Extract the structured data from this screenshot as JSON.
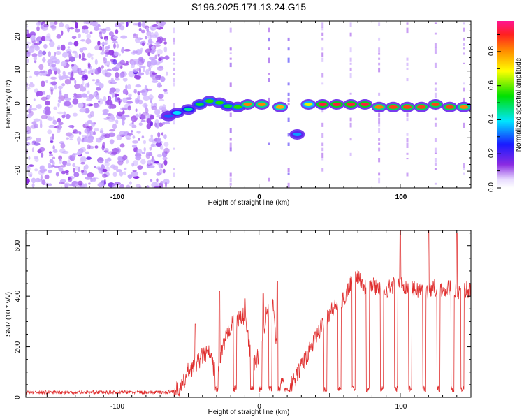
{
  "title": "S196.2025.171.13.24.G15",
  "colorbar": {
    "label": "Normalized spectral amplitude",
    "ticks": [
      "0.0",
      "0.2",
      "0.4",
      "0.6",
      "0.8"
    ],
    "range": [
      0.0,
      0.98
    ]
  },
  "chart_data": [
    {
      "type": "heatmap",
      "title": "S196.2025.171.13.24.G15",
      "xlabel": "Height of straight line (km)",
      "ylabel": "Frequency (Hz)",
      "xlim": [
        -165,
        150
      ],
      "ylim": [
        -25,
        25
      ],
      "xticks": [
        "-100",
        "0",
        "100"
      ],
      "yticks": [
        "-20",
        "-10",
        "0",
        "10",
        "20"
      ],
      "colormap": "rainbow (white -> violet -> blue -> cyan -> green -> yellow -> orange -> red -> magenta)",
      "noise_region_x": [
        -165,
        -65
      ],
      "ridge": [
        {
          "x": -64,
          "freq": -3.5,
          "amp": 0.35
        },
        {
          "x": -58,
          "freq": -2.5,
          "amp": 0.45
        },
        {
          "x": -50,
          "freq": -1.5,
          "amp": 0.5
        },
        {
          "x": -42,
          "freq": 0.0,
          "amp": 0.55
        },
        {
          "x": -35,
          "freq": 1.0,
          "amp": 0.6
        },
        {
          "x": -28,
          "freq": 0.5,
          "amp": 0.6
        },
        {
          "x": -22,
          "freq": -0.5,
          "amp": 0.55
        },
        {
          "x": -15,
          "freq": -0.8,
          "amp": 0.6
        },
        {
          "x": -8,
          "freq": 0.0,
          "amp": 0.85
        },
        {
          "x": 2,
          "freq": 0.0,
          "amp": 0.85
        },
        {
          "x": 15,
          "freq": -0.8,
          "amp": 0.8
        },
        {
          "x": 27,
          "freq": -9.0,
          "amp": 0.4
        },
        {
          "x": 35,
          "freq": 0.0,
          "amp": 0.7
        },
        {
          "x": 45,
          "freq": 0.0,
          "amp": 0.95
        },
        {
          "x": 55,
          "freq": 0.0,
          "amp": 0.95
        },
        {
          "x": 65,
          "freq": 0.0,
          "amp": 0.95
        },
        {
          "x": 75,
          "freq": 0.0,
          "amp": 0.95
        },
        {
          "x": 85,
          "freq": -0.8,
          "amp": 0.85
        },
        {
          "x": 95,
          "freq": -0.8,
          "amp": 0.9
        },
        {
          "x": 105,
          "freq": -0.8,
          "amp": 0.9
        },
        {
          "x": 115,
          "freq": -0.8,
          "amp": 0.9
        },
        {
          "x": 125,
          "freq": 0.0,
          "amp": 0.9
        },
        {
          "x": 135,
          "freq": -0.8,
          "amp": 0.9
        },
        {
          "x": 145,
          "freq": -0.8,
          "amp": 0.85
        }
      ]
    },
    {
      "type": "line",
      "xlabel": "Height of straight line (km)",
      "ylabel": "SNR (10 * v/v)",
      "xlim": [
        -165,
        150
      ],
      "ylim": [
        0,
        660
      ],
      "xticks": [
        "-100",
        "0",
        "100"
      ],
      "yticks": [
        "0",
        "200",
        "400",
        "600"
      ],
      "color": "#e03030",
      "x": [
        -165,
        -140,
        -115,
        -90,
        -65,
        -55,
        -50,
        -45,
        -40,
        -35,
        -30,
        -25,
        -20,
        -15,
        -10,
        -5,
        0,
        5,
        10,
        15,
        20,
        25,
        30,
        35,
        40,
        45,
        50,
        55,
        60,
        65,
        70,
        75,
        80,
        85,
        90,
        95,
        100,
        105,
        110,
        115,
        120,
        125,
        130,
        135,
        140,
        145,
        150
      ],
      "y": [
        20,
        20,
        20,
        20,
        20,
        30,
        100,
        120,
        160,
        170,
        70,
        200,
        280,
        300,
        320,
        120,
        160,
        320,
        360,
        60,
        30,
        60,
        120,
        170,
        230,
        280,
        330,
        360,
        380,
        450,
        480,
        430,
        440,
        430,
        420,
        440,
        450,
        430,
        420,
        420,
        420,
        430,
        420,
        430,
        410,
        420,
        420
      ]
    }
  ]
}
